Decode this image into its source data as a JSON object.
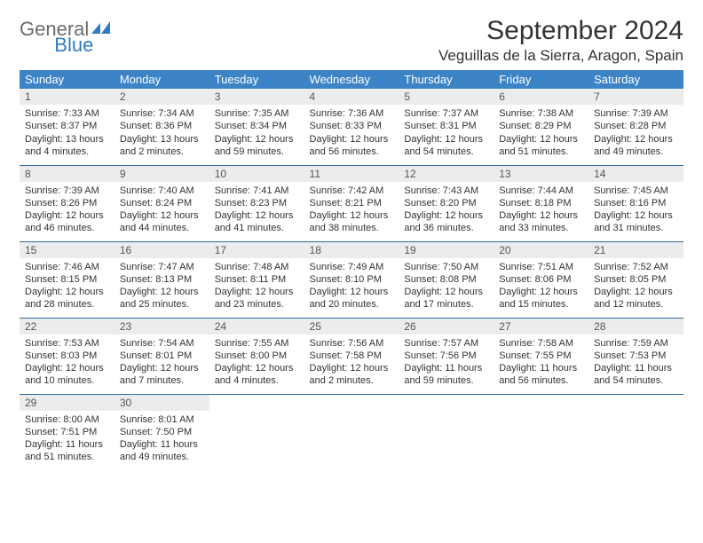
{
  "logo": {
    "text1": "General",
    "text2": "Blue"
  },
  "title": "September 2024",
  "location": "Veguillas de la Sierra, Aragon, Spain",
  "colors": {
    "header_bg": "#3d84c6",
    "header_text": "#ffffff",
    "row_divider": "#2f6aa5",
    "daynum_bg": "#ececec",
    "logo_gray": "#6b6b6b",
    "logo_blue": "#2f7bbf"
  },
  "weekdays": [
    "Sunday",
    "Monday",
    "Tuesday",
    "Wednesday",
    "Thursday",
    "Friday",
    "Saturday"
  ],
  "weeks": [
    [
      {
        "day": "1",
        "sunrise": "Sunrise: 7:33 AM",
        "sunset": "Sunset: 8:37 PM",
        "daylight": "Daylight: 13 hours and 4 minutes."
      },
      {
        "day": "2",
        "sunrise": "Sunrise: 7:34 AM",
        "sunset": "Sunset: 8:36 PM",
        "daylight": "Daylight: 13 hours and 2 minutes."
      },
      {
        "day": "3",
        "sunrise": "Sunrise: 7:35 AM",
        "sunset": "Sunset: 8:34 PM",
        "daylight": "Daylight: 12 hours and 59 minutes."
      },
      {
        "day": "4",
        "sunrise": "Sunrise: 7:36 AM",
        "sunset": "Sunset: 8:33 PM",
        "daylight": "Daylight: 12 hours and 56 minutes."
      },
      {
        "day": "5",
        "sunrise": "Sunrise: 7:37 AM",
        "sunset": "Sunset: 8:31 PM",
        "daylight": "Daylight: 12 hours and 54 minutes."
      },
      {
        "day": "6",
        "sunrise": "Sunrise: 7:38 AM",
        "sunset": "Sunset: 8:29 PM",
        "daylight": "Daylight: 12 hours and 51 minutes."
      },
      {
        "day": "7",
        "sunrise": "Sunrise: 7:39 AM",
        "sunset": "Sunset: 8:28 PM",
        "daylight": "Daylight: 12 hours and 49 minutes."
      }
    ],
    [
      {
        "day": "8",
        "sunrise": "Sunrise: 7:39 AM",
        "sunset": "Sunset: 8:26 PM",
        "daylight": "Daylight: 12 hours and 46 minutes."
      },
      {
        "day": "9",
        "sunrise": "Sunrise: 7:40 AM",
        "sunset": "Sunset: 8:24 PM",
        "daylight": "Daylight: 12 hours and 44 minutes."
      },
      {
        "day": "10",
        "sunrise": "Sunrise: 7:41 AM",
        "sunset": "Sunset: 8:23 PM",
        "daylight": "Daylight: 12 hours and 41 minutes."
      },
      {
        "day": "11",
        "sunrise": "Sunrise: 7:42 AM",
        "sunset": "Sunset: 8:21 PM",
        "daylight": "Daylight: 12 hours and 38 minutes."
      },
      {
        "day": "12",
        "sunrise": "Sunrise: 7:43 AM",
        "sunset": "Sunset: 8:20 PM",
        "daylight": "Daylight: 12 hours and 36 minutes."
      },
      {
        "day": "13",
        "sunrise": "Sunrise: 7:44 AM",
        "sunset": "Sunset: 8:18 PM",
        "daylight": "Daylight: 12 hours and 33 minutes."
      },
      {
        "day": "14",
        "sunrise": "Sunrise: 7:45 AM",
        "sunset": "Sunset: 8:16 PM",
        "daylight": "Daylight: 12 hours and 31 minutes."
      }
    ],
    [
      {
        "day": "15",
        "sunrise": "Sunrise: 7:46 AM",
        "sunset": "Sunset: 8:15 PM",
        "daylight": "Daylight: 12 hours and 28 minutes."
      },
      {
        "day": "16",
        "sunrise": "Sunrise: 7:47 AM",
        "sunset": "Sunset: 8:13 PM",
        "daylight": "Daylight: 12 hours and 25 minutes."
      },
      {
        "day": "17",
        "sunrise": "Sunrise: 7:48 AM",
        "sunset": "Sunset: 8:11 PM",
        "daylight": "Daylight: 12 hours and 23 minutes."
      },
      {
        "day": "18",
        "sunrise": "Sunrise: 7:49 AM",
        "sunset": "Sunset: 8:10 PM",
        "daylight": "Daylight: 12 hours and 20 minutes."
      },
      {
        "day": "19",
        "sunrise": "Sunrise: 7:50 AM",
        "sunset": "Sunset: 8:08 PM",
        "daylight": "Daylight: 12 hours and 17 minutes."
      },
      {
        "day": "20",
        "sunrise": "Sunrise: 7:51 AM",
        "sunset": "Sunset: 8:06 PM",
        "daylight": "Daylight: 12 hours and 15 minutes."
      },
      {
        "day": "21",
        "sunrise": "Sunrise: 7:52 AM",
        "sunset": "Sunset: 8:05 PM",
        "daylight": "Daylight: 12 hours and 12 minutes."
      }
    ],
    [
      {
        "day": "22",
        "sunrise": "Sunrise: 7:53 AM",
        "sunset": "Sunset: 8:03 PM",
        "daylight": "Daylight: 12 hours and 10 minutes."
      },
      {
        "day": "23",
        "sunrise": "Sunrise: 7:54 AM",
        "sunset": "Sunset: 8:01 PM",
        "daylight": "Daylight: 12 hours and 7 minutes."
      },
      {
        "day": "24",
        "sunrise": "Sunrise: 7:55 AM",
        "sunset": "Sunset: 8:00 PM",
        "daylight": "Daylight: 12 hours and 4 minutes."
      },
      {
        "day": "25",
        "sunrise": "Sunrise: 7:56 AM",
        "sunset": "Sunset: 7:58 PM",
        "daylight": "Daylight: 12 hours and 2 minutes."
      },
      {
        "day": "26",
        "sunrise": "Sunrise: 7:57 AM",
        "sunset": "Sunset: 7:56 PM",
        "daylight": "Daylight: 11 hours and 59 minutes."
      },
      {
        "day": "27",
        "sunrise": "Sunrise: 7:58 AM",
        "sunset": "Sunset: 7:55 PM",
        "daylight": "Daylight: 11 hours and 56 minutes."
      },
      {
        "day": "28",
        "sunrise": "Sunrise: 7:59 AM",
        "sunset": "Sunset: 7:53 PM",
        "daylight": "Daylight: 11 hours and 54 minutes."
      }
    ],
    [
      {
        "day": "29",
        "sunrise": "Sunrise: 8:00 AM",
        "sunset": "Sunset: 7:51 PM",
        "daylight": "Daylight: 11 hours and 51 minutes."
      },
      {
        "day": "30",
        "sunrise": "Sunrise: 8:01 AM",
        "sunset": "Sunset: 7:50 PM",
        "daylight": "Daylight: 11 hours and 49 minutes."
      },
      {
        "day": "",
        "sunrise": "",
        "sunset": "",
        "daylight": ""
      },
      {
        "day": "",
        "sunrise": "",
        "sunset": "",
        "daylight": ""
      },
      {
        "day": "",
        "sunrise": "",
        "sunset": "",
        "daylight": ""
      },
      {
        "day": "",
        "sunrise": "",
        "sunset": "",
        "daylight": ""
      },
      {
        "day": "",
        "sunrise": "",
        "sunset": "",
        "daylight": ""
      }
    ]
  ]
}
